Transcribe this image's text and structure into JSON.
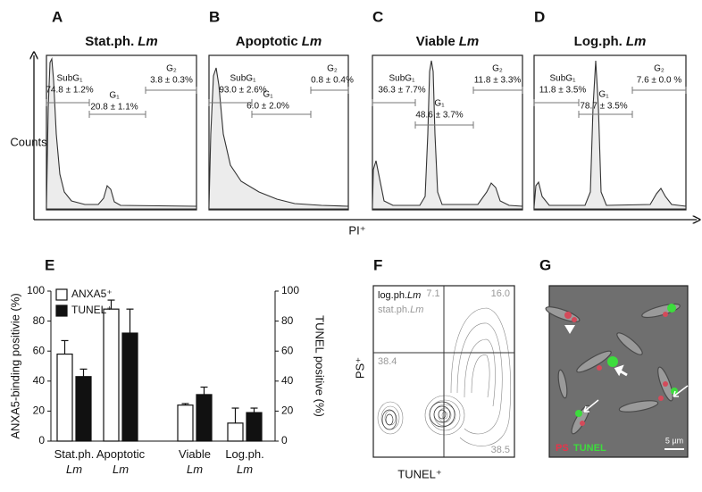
{
  "histograms": [
    {
      "letter": "A",
      "title": "Stat.ph.",
      "organism": "Lm",
      "gates": [
        {
          "name": "SubG₁",
          "value": "74.8 ± 1.2%"
        },
        {
          "name": "G₁",
          "value": "20.8 ± 1.1%"
        },
        {
          "name": "G₂",
          "value": "3.8 ± 0.3%"
        }
      ]
    },
    {
      "letter": "B",
      "title": "Apoptotic",
      "organism": "Lm",
      "gates": [
        {
          "name": "SubG₁",
          "value": "93.0 ± 2.6%"
        },
        {
          "name": "G₁",
          "value": "6.0 ± 2.0%"
        },
        {
          "name": "G₂",
          "value": "0.8 ± 0.4%"
        }
      ]
    },
    {
      "letter": "C",
      "title": "Viable",
      "organism": "Lm",
      "gates": [
        {
          "name": "SubG₁",
          "value": "36.3 ± 7.7%"
        },
        {
          "name": "G₁",
          "value": "48.6 ± 3.7%"
        },
        {
          "name": "G₂",
          "value": "11.8 ± 3.3%"
        }
      ]
    },
    {
      "letter": "D",
      "title": "Log.ph.",
      "organism": "Lm",
      "gates": [
        {
          "name": "SubG₁",
          "value": "11.8 ± 3.5%"
        },
        {
          "name": "G₁",
          "value": "78.7 ± 3.5%"
        },
        {
          "name": "G₂",
          "value": "7.6 ± 0.0 %"
        }
      ]
    }
  ],
  "histogram_y_label": "Counts",
  "histogram_x_label": "PI⁺",
  "chart_data": {
    "type": "bar",
    "letter": "E",
    "categories": [
      {
        "name": "Stat.ph.",
        "organism": "Lm"
      },
      {
        "name": "Apoptotic",
        "organism": "Lm"
      },
      {
        "name": "Viable",
        "organism": "Lm"
      },
      {
        "name": "Log.ph.",
        "organism": "Lm"
      }
    ],
    "series": [
      {
        "name": "ANXA5⁺",
        "color": "#ffffff",
        "values": [
          58,
          88,
          24,
          12
        ],
        "errors": [
          9,
          6,
          1,
          10
        ]
      },
      {
        "name": "TUNEL⁺",
        "color": "#111111",
        "axis": "y2",
        "values": [
          43,
          72,
          31,
          19
        ],
        "errors": [
          5,
          16,
          5,
          3
        ]
      }
    ],
    "ylabel": "ANXA5-binding positivie (%)",
    "y2label": "TUNEL positive (%)",
    "ylim": [
      0,
      100
    ],
    "yticks": [
      0,
      20,
      40,
      60,
      80,
      100
    ],
    "y2lim": [
      0,
      100
    ],
    "y2ticks": [
      0,
      20,
      40,
      60,
      80,
      100
    ],
    "legend": "upper-left"
  },
  "contour": {
    "letter": "F",
    "legend": [
      {
        "name": "log.ph.",
        "organism": "Lm"
      },
      {
        "name": "stat.ph.",
        "organism": "Lm"
      }
    ],
    "quadrants": [
      "7.1",
      "16.0",
      "38.4",
      "38.5"
    ],
    "x_label": "TUNEL⁺",
    "y_label": "PS⁺"
  },
  "micrograph": {
    "letter": "G",
    "channels": [
      "PS",
      "TUNEL"
    ],
    "scale_bar": "5 µm"
  }
}
